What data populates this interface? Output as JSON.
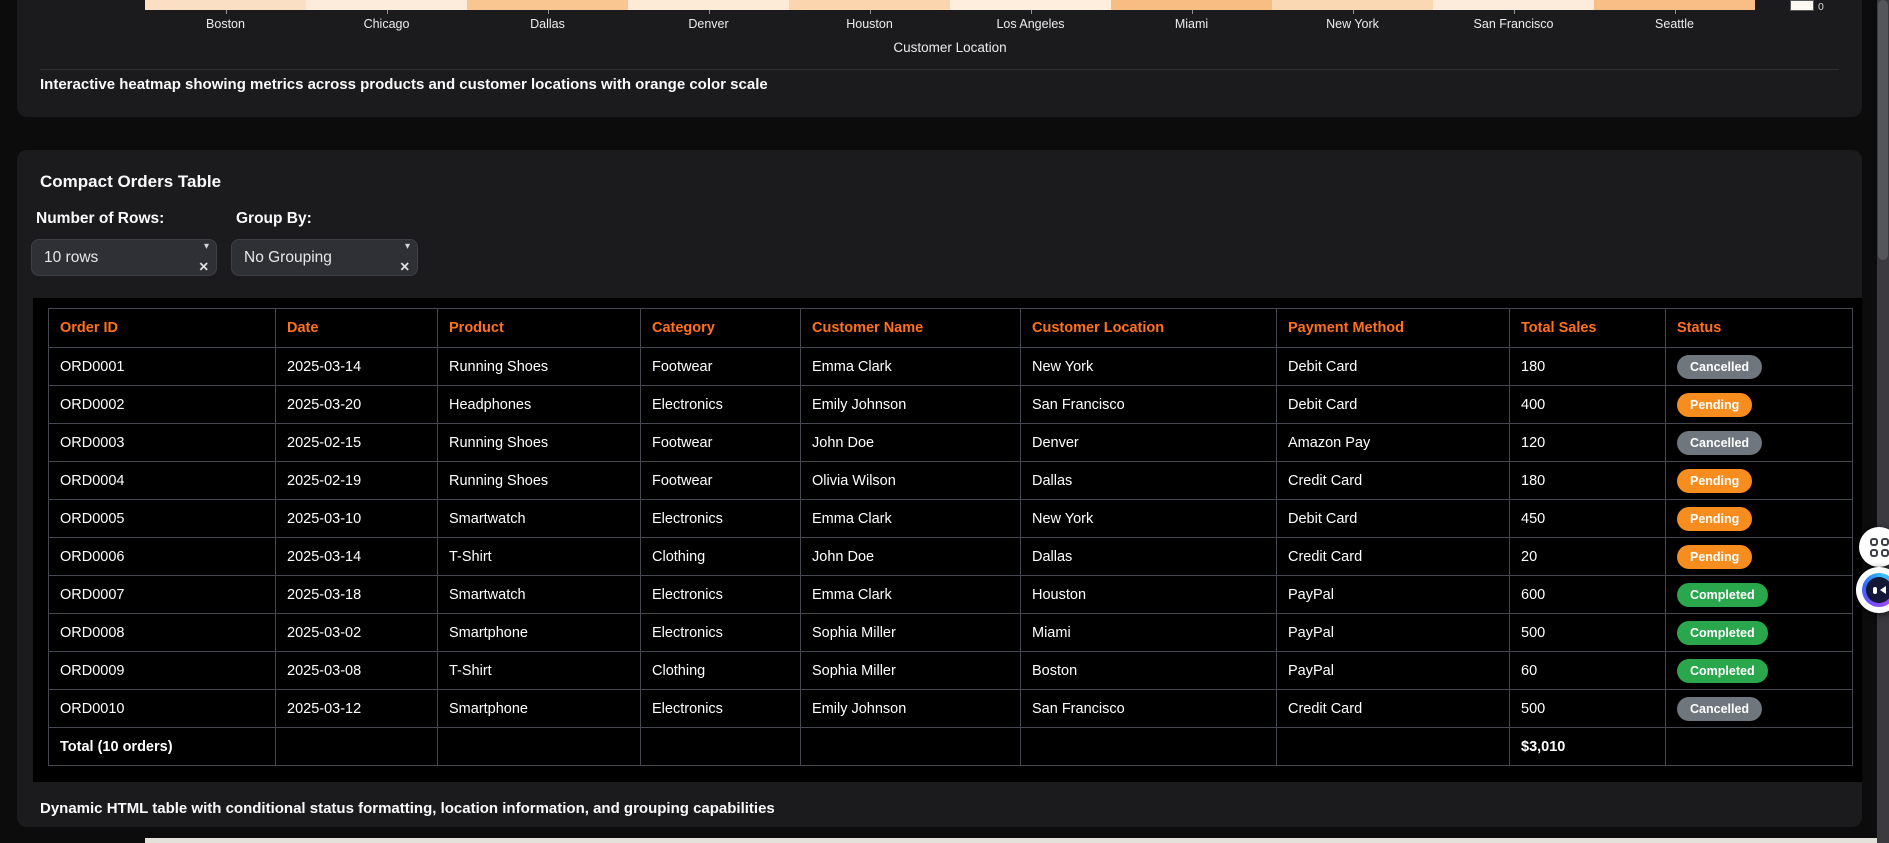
{
  "accent": "#ff711c",
  "heatmap_card": {
    "x_axis_label": "Customer Location",
    "colorbar_min_label": "0",
    "caption": "Interactive heatmap showing metrics across products and customer locations with orange color scale",
    "cells": [
      {
        "city": "Boston",
        "color": "#fbdfc5"
      },
      {
        "city": "Chicago",
        "color": "#fdecdb"
      },
      {
        "city": "Dallas",
        "color": "#f9c692"
      },
      {
        "city": "Denver",
        "color": "#fdebd8"
      },
      {
        "city": "Houston",
        "color": "#fbd5ad"
      },
      {
        "city": "Los Angeles",
        "color": "#fdeedd"
      },
      {
        "city": "Miami",
        "color": "#f8bd83"
      },
      {
        "city": "New York",
        "color": "#fbd8b4"
      },
      {
        "city": "San Francisco",
        "color": "#fdecdb"
      },
      {
        "city": "Seattle",
        "color": "#f8be85"
      }
    ]
  },
  "orders_card": {
    "title": "Compact Orders Table",
    "caption": "Dynamic HTML table with conditional status formatting, location information, and grouping capabilities",
    "controls": {
      "rows_label": "Number of Rows:",
      "rows_value": "10 rows",
      "group_label": "Group By:",
      "group_value": "No Grouping"
    },
    "table": {
      "headers": [
        "Order ID",
        "Date",
        "Product",
        "Category",
        "Customer Name",
        "Customer Location",
        "Payment Method",
        "Total Sales",
        "Status"
      ],
      "rows": [
        {
          "order_id": "ORD0001",
          "date": "2025-03-14",
          "product": "Running Shoes",
          "category": "Footwear",
          "customer": "Emma Clark",
          "location": "New York",
          "payment": "Debit Card",
          "total": "180",
          "status": "Cancelled"
        },
        {
          "order_id": "ORD0002",
          "date": "2025-03-20",
          "product": "Headphones",
          "category": "Electronics",
          "customer": "Emily Johnson",
          "location": "San Francisco",
          "payment": "Debit Card",
          "total": "400",
          "status": "Pending"
        },
        {
          "order_id": "ORD0003",
          "date": "2025-02-15",
          "product": "Running Shoes",
          "category": "Footwear",
          "customer": "John Doe",
          "location": "Denver",
          "payment": "Amazon Pay",
          "total": "120",
          "status": "Cancelled"
        },
        {
          "order_id": "ORD0004",
          "date": "2025-02-19",
          "product": "Running Shoes",
          "category": "Footwear",
          "customer": "Olivia Wilson",
          "location": "Dallas",
          "payment": "Credit Card",
          "total": "180",
          "status": "Pending"
        },
        {
          "order_id": "ORD0005",
          "date": "2025-03-10",
          "product": "Smartwatch",
          "category": "Electronics",
          "customer": "Emma Clark",
          "location": "New York",
          "payment": "Debit Card",
          "total": "450",
          "status": "Pending"
        },
        {
          "order_id": "ORD0006",
          "date": "2025-03-14",
          "product": "T-Shirt",
          "category": "Clothing",
          "customer": "John Doe",
          "location": "Dallas",
          "payment": "Credit Card",
          "total": "20",
          "status": "Pending"
        },
        {
          "order_id": "ORD0007",
          "date": "2025-03-18",
          "product": "Smartwatch",
          "category": "Electronics",
          "customer": "Emma Clark",
          "location": "Houston",
          "payment": "PayPal",
          "total": "600",
          "status": "Completed"
        },
        {
          "order_id": "ORD0008",
          "date": "2025-03-02",
          "product": "Smartphone",
          "category": "Electronics",
          "customer": "Sophia Miller",
          "location": "Miami",
          "payment": "PayPal",
          "total": "500",
          "status": "Completed"
        },
        {
          "order_id": "ORD0009",
          "date": "2025-03-08",
          "product": "T-Shirt",
          "category": "Clothing",
          "customer": "Sophia Miller",
          "location": "Boston",
          "payment": "PayPal",
          "total": "60",
          "status": "Completed"
        },
        {
          "order_id": "ORD0010",
          "date": "2025-03-12",
          "product": "Smartphone",
          "category": "Electronics",
          "customer": "Emily Johnson",
          "location": "San Francisco",
          "payment": "Credit Card",
          "total": "500",
          "status": "Cancelled"
        }
      ],
      "total_label": "Total (10 orders)",
      "total_value": "$3,010"
    }
  },
  "status_colors": {
    "Cancelled": "#70767d",
    "Pending": "#f68d1e",
    "Completed": "#2aa64d"
  },
  "icons": {
    "caret_down": "▾",
    "clear": "✕"
  }
}
